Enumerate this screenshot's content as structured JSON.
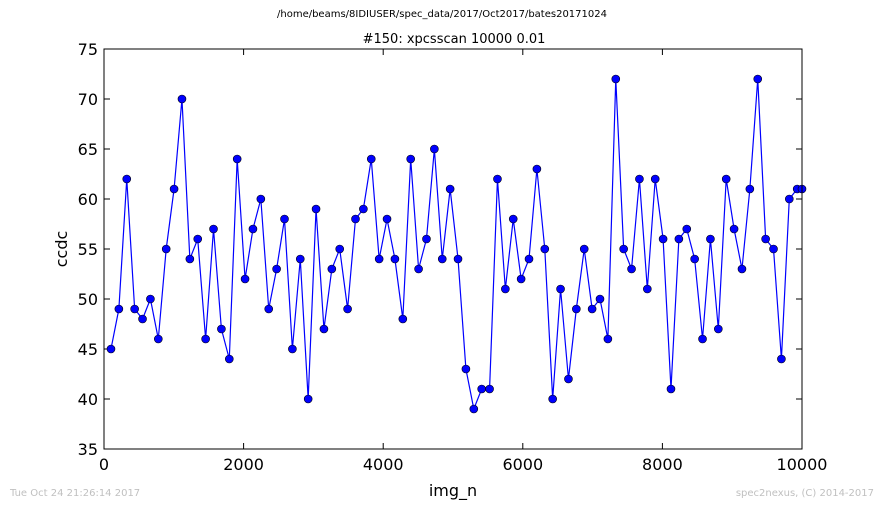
{
  "header": {
    "path": "/home/beams/8IDIUSER/spec_data/2017/Oct2017/bates20171024"
  },
  "footer": {
    "timestamp": "Tue Oct 24 21:26:14 2017",
    "credit": "spec2nexus, (C) 2014-2017"
  },
  "chart_data": {
    "type": "line",
    "title": "#150: xpcsscan 10000 0.01",
    "xlabel": "img_n",
    "ylabel": "ccdc",
    "xlim": [
      0,
      10000
    ],
    "ylim": [
      35,
      75
    ],
    "xticks": [
      0,
      2000,
      4000,
      6000,
      8000,
      10000
    ],
    "yticks": [
      35,
      40,
      45,
      50,
      55,
      60,
      65,
      70,
      75
    ],
    "grid": false,
    "marker": "circle",
    "color": "#0000ff",
    "series": [
      {
        "x": [
          100,
          213,
          326,
          439,
          552,
          665,
          778,
          891,
          1004,
          1117,
          1230,
          1343,
          1456,
          1569,
          1682,
          1795,
          1908,
          2021,
          2134,
          2247,
          2360,
          2473,
          2586,
          2699,
          2812,
          2925,
          3038,
          3151,
          3264,
          3377,
          3490,
          3603,
          3716,
          3829,
          3942,
          4055,
          4168,
          4281,
          4394,
          4507,
          4620,
          4733,
          4846,
          4959,
          5072,
          5185,
          5298,
          5411,
          5524,
          5637,
          5750,
          5863,
          5976,
          6089,
          6202,
          6315,
          6428,
          6541,
          6654,
          6767,
          6880,
          6993,
          7106,
          7219,
          7332,
          7445,
          7558,
          7671,
          7784,
          7897,
          8010,
          8123,
          8236,
          8349,
          8462,
          8575,
          8688,
          8801,
          8914,
          9027,
          9140,
          9253,
          9366,
          9479,
          9592,
          9705,
          9818,
          9931,
          10000
        ],
        "y": [
          45,
          49,
          62,
          49,
          48,
          50,
          46,
          55,
          61,
          70,
          54,
          56,
          46,
          57,
          47,
          44,
          64,
          52,
          57,
          60,
          49,
          53,
          58,
          45,
          54,
          40,
          59,
          47,
          53,
          55,
          49,
          58,
          59,
          64,
          54,
          58,
          54,
          48,
          64,
          53,
          56,
          65,
          54,
          61,
          54,
          43,
          39,
          41,
          41,
          62,
          51,
          58,
          52,
          54,
          63,
          55,
          40,
          51,
          42,
          49,
          55,
          49,
          50,
          46,
          72,
          55,
          53,
          62,
          51,
          62,
          56,
          41,
          56,
          57,
          54,
          46,
          56,
          47,
          62,
          57,
          53,
          61,
          72,
          56,
          55,
          44,
          60,
          61,
          61
        ]
      }
    ]
  }
}
